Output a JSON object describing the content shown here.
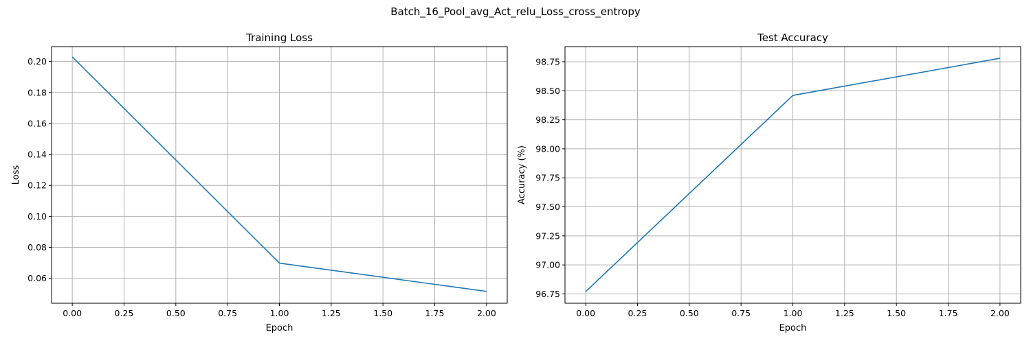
{
  "figure": {
    "suptitle": "Batch_16_Pool_avg_Act_relu_Loss_cross_entropy"
  },
  "chart_data": [
    {
      "type": "line",
      "title": "Training Loss",
      "xlabel": "Epoch",
      "ylabel": "Loss",
      "x": [
        0,
        1,
        2
      ],
      "series": [
        {
          "values": [
            0.203,
            0.0698,
            0.0515
          ],
          "color": "#1f77b4"
        }
      ],
      "xlim": [
        -0.1,
        2.1
      ],
      "ylim": [
        0.0439,
        0.2096
      ],
      "xticks": [
        0,
        0.25,
        0.5,
        0.75,
        1,
        1.25,
        1.5,
        1.75,
        2
      ],
      "xtick_labels": [
        "0.00",
        "0.25",
        "0.50",
        "0.75",
        "1.00",
        "1.25",
        "1.50",
        "1.75",
        "2.00"
      ],
      "yticks": [
        0.06,
        0.08,
        0.1,
        0.12,
        0.14,
        0.16,
        0.18,
        0.2
      ],
      "ytick_labels": [
        "0.06",
        "0.08",
        "0.10",
        "0.12",
        "0.14",
        "0.16",
        "0.18",
        "0.20"
      ],
      "grid": true
    },
    {
      "type": "line",
      "title": "Test Accuracy",
      "xlabel": "Epoch",
      "ylabel": "Accuracy (%)",
      "x": [
        0,
        1,
        2
      ],
      "series": [
        {
          "values": [
            96.77,
            98.46,
            98.78
          ],
          "color": "#1f77b4"
        }
      ],
      "xlim": [
        -0.1,
        2.1
      ],
      "ylim": [
        96.67,
        98.88
      ],
      "xticks": [
        0,
        0.25,
        0.5,
        0.75,
        1,
        1.25,
        1.5,
        1.75,
        2
      ],
      "xtick_labels": [
        "0.00",
        "0.25",
        "0.50",
        "0.75",
        "1.00",
        "1.25",
        "1.50",
        "1.75",
        "2.00"
      ],
      "yticks": [
        96.75,
        97.0,
        97.25,
        97.5,
        97.75,
        98.0,
        98.25,
        98.5,
        98.75
      ],
      "ytick_labels": [
        "96.75",
        "97.00",
        "97.25",
        "97.50",
        "97.75",
        "98.00",
        "98.25",
        "98.50",
        "98.75"
      ],
      "grid": true
    }
  ]
}
